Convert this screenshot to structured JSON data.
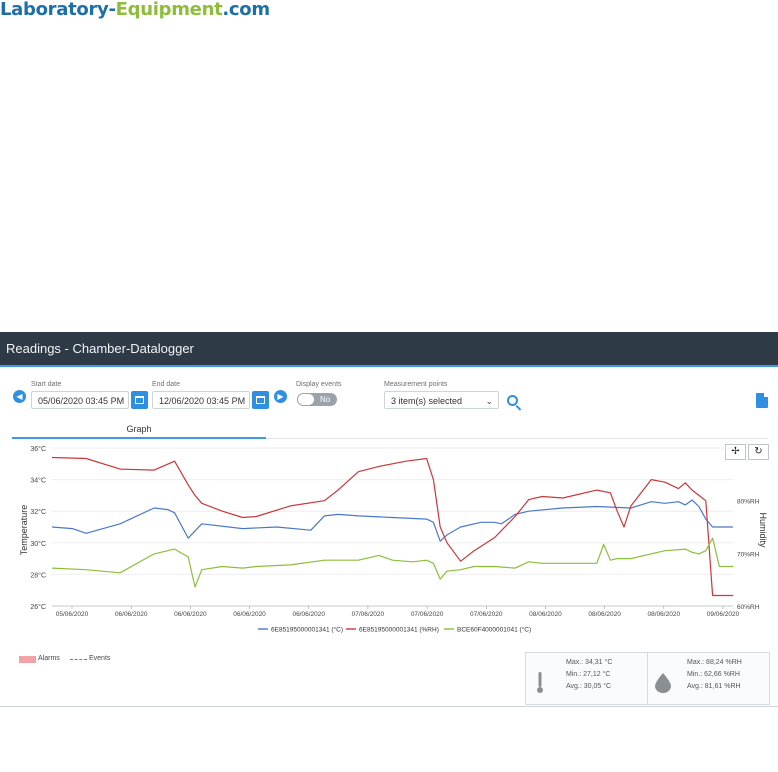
{
  "site": {
    "logo_part1": "Laboratory-",
    "logo_part2": "Equipment",
    "logo_part3": ".com"
  },
  "window": {
    "title": "Readings - Chamber-Datalogger"
  },
  "filters": {
    "start_label": "Start date",
    "start_value": "05/06/2020 03:45 PM",
    "end_label": "End date",
    "end_value": "12/06/2020 03:45 PM",
    "events_label": "Display events",
    "events_value": "No",
    "points_label": "Measurement points",
    "points_value": "3 item(s) selected"
  },
  "tabs": [
    {
      "label": "Graph",
      "active": true
    }
  ],
  "chart_controls": {
    "pan": "✢",
    "reset": "↻"
  },
  "colors": {
    "blue": "#4a78c8",
    "red": "#c8373b",
    "green": "#8bbf3a",
    "accent": "#2f8fe0",
    "titlebar": "#2e3b46"
  },
  "chart_data": {
    "type": "line",
    "ylabel": "Temperature",
    "y2label": "Humidity",
    "ylim": [
      26,
      36
    ],
    "y_ticks": [
      "26°C",
      "28°C",
      "30°C",
      "32°C",
      "34°C",
      "36°C"
    ],
    "y2lim": [
      60,
      90
    ],
    "y2_ticks": [
      "60%RH",
      "70%RH",
      "80%RH"
    ],
    "x_ticks": [
      "05/06/2020",
      "06/06/2020",
      "06/06/2020",
      "06/06/2020",
      "06/06/2020",
      "07/06/2020",
      "07/06/2020",
      "07/06/2020",
      "08/06/2020",
      "08/06/2020",
      "08/06/2020",
      "09/06/2020"
    ],
    "grid": true,
    "series": [
      {
        "name": "6E85195000001341 (°C)",
        "color": "#4a78c8",
        "axis": "left",
        "x": [
          0,
          3,
          5,
          10,
          15,
          17,
          18,
          20,
          22,
          28,
          33,
          38,
          40,
          42,
          45,
          50,
          55,
          56,
          57,
          58,
          60,
          63,
          65,
          66,
          67,
          68,
          70,
          75,
          80,
          85,
          88,
          90,
          92,
          93,
          94,
          95,
          96,
          97,
          100
        ],
        "y": [
          31,
          30.9,
          30.6,
          31.2,
          32.2,
          32.1,
          31.9,
          30.3,
          31.2,
          30.9,
          31,
          30.8,
          31.7,
          31.8,
          31.7,
          31.6,
          31.5,
          31.3,
          30.1,
          30.5,
          31,
          31.3,
          31.3,
          31.2,
          31.5,
          31.8,
          32,
          32.2,
          32.3,
          32.2,
          32.6,
          32.5,
          32.6,
          32.4,
          32.7,
          32.3,
          31.5,
          31,
          31
        ]
      },
      {
        "name": "6E85195000001341 (%RH)",
        "color": "#c8373b",
        "axis": "right",
        "x": [
          0,
          5,
          10,
          15,
          18,
          20,
          21,
          22,
          25,
          28,
          30,
          35,
          40,
          42,
          45,
          48,
          52,
          55,
          56,
          57,
          58,
          60,
          62,
          65,
          68,
          70,
          72,
          75,
          80,
          82,
          83,
          84,
          85,
          88,
          90,
          92,
          93,
          94,
          95,
          96,
          97,
          100
        ],
        "y": [
          88.2,
          88,
          86,
          85.8,
          87.5,
          83,
          81,
          79.5,
          78,
          76.8,
          77,
          79,
          80,
          82,
          85.5,
          86.5,
          87.5,
          88,
          84,
          75,
          72,
          68.5,
          70.5,
          73,
          77,
          80.2,
          80.8,
          80.5,
          82,
          81.5,
          78,
          75,
          79,
          84,
          83.5,
          82.3,
          83.4,
          82,
          81,
          80,
          62,
          62
        ]
      },
      {
        "name": "BCE60F4000001041 (°C)",
        "color": "#8bbf3a",
        "axis": "left",
        "x": [
          0,
          5,
          10,
          15,
          18,
          20,
          21,
          22,
          25,
          28,
          30,
          35,
          40,
          42,
          45,
          48,
          50,
          53,
          55,
          56,
          57,
          58,
          60,
          62,
          65,
          68,
          70,
          72,
          75,
          80,
          81,
          82,
          83,
          85,
          90,
          93,
          94,
          95,
          96,
          97,
          98,
          100
        ],
        "y": [
          28.4,
          28.3,
          28.1,
          29.3,
          29.6,
          29.1,
          27.2,
          28.3,
          28.5,
          28.4,
          28.5,
          28.6,
          28.9,
          28.9,
          28.9,
          29.2,
          28.9,
          28.8,
          28.9,
          28.7,
          27.7,
          28.2,
          28.3,
          28.5,
          28.5,
          28.4,
          28.8,
          28.7,
          28.7,
          28.7,
          29.9,
          28.9,
          29,
          29,
          29.5,
          29.6,
          29.4,
          29.3,
          29.5,
          30.3,
          28.5,
          28.5
        ]
      }
    ]
  },
  "legend": {
    "alarms": "Alarms",
    "events": "Events"
  },
  "stats": {
    "temp": {
      "max": "Max.: 34,31 °C",
      "min": "Min.: 27,12 °C",
      "avg": "Avg.: 30,05 °C"
    },
    "humidity": {
      "max": "Max.: 88,24 %RH",
      "min": "Min.: 62,66 %RH",
      "avg": "Avg.: 81,61 %RH"
    }
  },
  "icons": {
    "prev": "chevron-left-icon",
    "next": "chevron-right-icon",
    "calendar": "calendar-icon",
    "search": "search-icon",
    "export": "file-export-icon",
    "thermometer": "thermometer-icon",
    "drop": "water-drop-icon"
  }
}
